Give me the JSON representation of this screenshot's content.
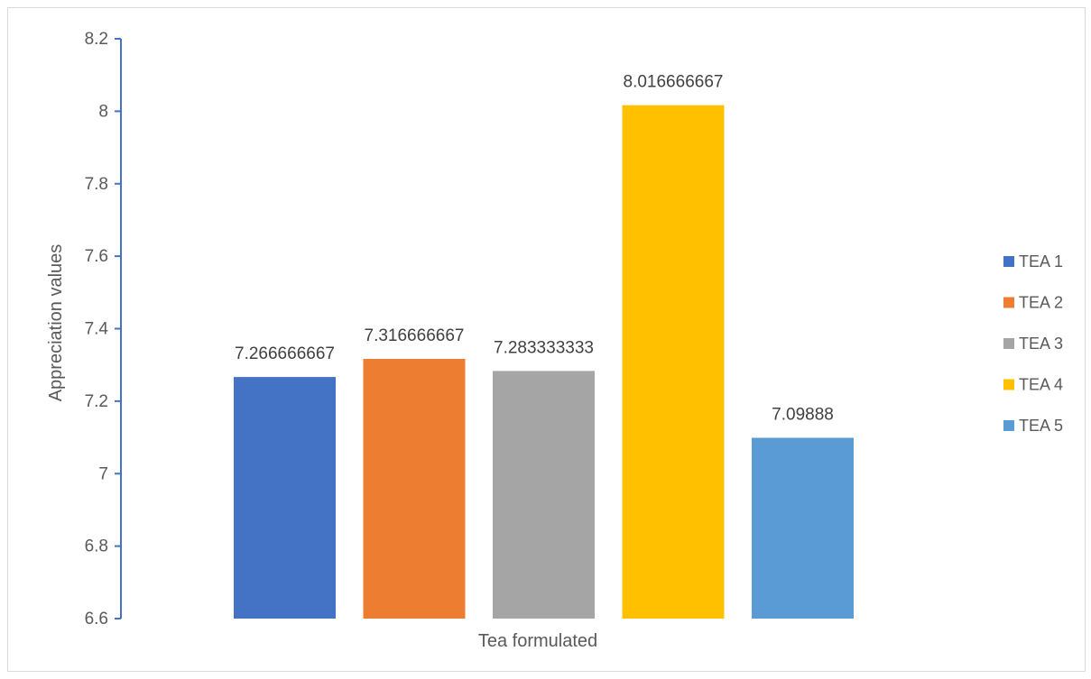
{
  "chart_data": {
    "type": "bar",
    "title": "",
    "xlabel": "Tea formulated",
    "ylabel": "Appreciation values",
    "ylim": [
      6.6,
      8.2
    ],
    "yticks": [
      6.6,
      6.8,
      7,
      7.2,
      7.4,
      7.6,
      7.8,
      8,
      8.2
    ],
    "ytick_labels": [
      "6.6",
      "6.8",
      "7",
      "7.2",
      "7.4",
      "7.6",
      "7.8",
      "8",
      "8.2"
    ],
    "grid": false,
    "legend_position": "right",
    "series": [
      {
        "name": "TEA 1",
        "value": 7.266666667,
        "label": "7.266666667",
        "color": "#4472c4"
      },
      {
        "name": "TEA 2",
        "value": 7.316666667,
        "label": "7.316666667",
        "color": "#ed7d31"
      },
      {
        "name": "TEA 3",
        "value": 7.283333333,
        "label": "7.283333333",
        "color": "#a5a5a5"
      },
      {
        "name": "TEA 4",
        "value": 8.016666667,
        "label": "8.016666667",
        "color": "#ffc000"
      },
      {
        "name": "TEA 5",
        "value": 7.09888,
        "label": "7.09888",
        "color": "#5b9bd5"
      }
    ],
    "axis_color": "#4472c4"
  }
}
